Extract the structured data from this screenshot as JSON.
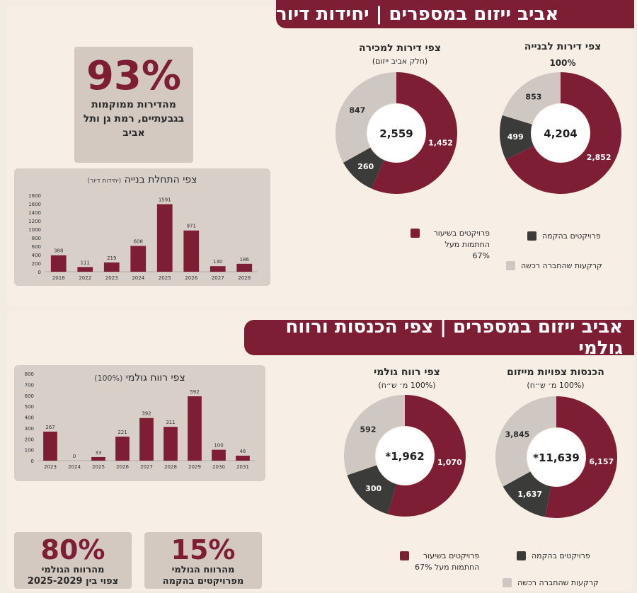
{
  "section1": {
    "banner": "אביב ייזום במספרים | יחידות דיור",
    "donut_right": {
      "title": "צפי דירות לבנייה",
      "subtitle": "100%",
      "center": "4,204"
    },
    "donut_left": {
      "title": "צפי דירות למכירה",
      "subtitle": "(חלק אביב ייזום)",
      "center": "2,559"
    },
    "stat": {
      "value": "93%",
      "text": "מהדירות ממוקמות בגבעתיים, רמת גן ותל אביב"
    },
    "legend": {
      "in_progress": {
        "line1": "פרויקטים בשיעור",
        "line2": "החתמות מעל 67%"
      },
      "building": "פרויקטים בהקמה",
      "land": "קרקעות שהחברה רכשה"
    }
  },
  "section2": {
    "banner": "אביב ייזום במספרים | צפי הכנסות ורווח גולמי",
    "donut_right": {
      "title": "הכנסות צפויות מייזום",
      "subtitle": "(100% מ׳ ש״ח)",
      "center": "*11,639"
    },
    "donut_left": {
      "title": "צפי רווח גולמי",
      "subtitle": "(100% מ׳ ש״ח)",
      "center": "*1,962"
    },
    "stat_left": {
      "value": "80%",
      "line1": "מהרווח הגולמי",
      "line2": "צפוי בין 2025-2029"
    },
    "stat_right": {
      "value": "15%",
      "line1": "מהרווח הגולמי",
      "line2": "מפרויקטים בהקמה"
    },
    "legend": {
      "in_progress": {
        "line1": "פרויקטים בשיעור",
        "line2": "החתמות מעל 67%"
      },
      "building": "פרויקטים בהקמה",
      "land": "קרקעות שהחברה רכשה"
    }
  },
  "colors": {
    "maroon": "#7d1e35",
    "dark": "#3b3b39",
    "grey": "#cfc7c2"
  },
  "chart_data": [
    {
      "type": "pie",
      "title": "צפי דירות לבנייה",
      "subtitle": "100%",
      "center_label": "4,204",
      "slices": [
        {
          "name": "פרויקטים בשיעור החתמות מעל 67%",
          "value": 2852,
          "label": "2,852",
          "color": "#7d1e35"
        },
        {
          "name": "פרויקטים בהקמה",
          "value": 499,
          "label": "499",
          "color": "#3b3b39"
        },
        {
          "name": "קרקעות שהחברה רכשה",
          "value": 853,
          "label": "853",
          "color": "#cfc7c2"
        }
      ]
    },
    {
      "type": "pie",
      "title": "צפי דירות למכירה",
      "subtitle": "(חלק אביב ייזום)",
      "center_label": "2,559",
      "slices": [
        {
          "name": "פרויקטים בשיעור החתמות מעל 67%",
          "value": 1452,
          "label": "1,452",
          "color": "#7d1e35"
        },
        {
          "name": "פרויקטים בהקמה",
          "value": 260,
          "label": "260",
          "color": "#3b3b39"
        },
        {
          "name": "קרקעות שהחברה רכשה",
          "value": 847,
          "label": "847",
          "color": "#cfc7c2"
        }
      ]
    },
    {
      "type": "bar",
      "title": "צפי התחלת בנייה",
      "subtitle": "(יחידות דיור)",
      "categories": [
        "2018",
        "2022",
        "2023",
        "2024",
        "2025",
        "2026",
        "2027",
        "2028"
      ],
      "values": [
        388,
        111,
        219,
        608,
        1591,
        971,
        130,
        186
      ],
      "yticks": [
        "0",
        "200",
        "400",
        "600",
        "800",
        "1000",
        "1200",
        "1400",
        "1600",
        "1800"
      ],
      "ylim": [
        0,
        1800
      ]
    },
    {
      "type": "pie",
      "title": "הכנסות צפויות מייזום",
      "subtitle": "(100% מ׳ ש״ח)",
      "center_label": "*11,639",
      "slices": [
        {
          "name": "פרויקטים בשיעור החתמות מעל 67%",
          "value": 6157,
          "label": "6,157",
          "color": "#7d1e35"
        },
        {
          "name": "פרויקטים בהקמה",
          "value": 1637,
          "label": "1,637",
          "color": "#3b3b39"
        },
        {
          "name": "קרקעות שהחברה רכשה",
          "value": 3845,
          "label": "3,845",
          "color": "#cfc7c2"
        }
      ]
    },
    {
      "type": "pie",
      "title": "צפי רווח גולמי",
      "subtitle": "(100% מ׳ ש״ח)",
      "center_label": "*1,962",
      "slices": [
        {
          "name": "פרויקטים בשיעור החתמות מעל 67%",
          "value": 1070,
          "label": "1,070",
          "color": "#7d1e35"
        },
        {
          "name": "פרויקטים בהקמה",
          "value": 300,
          "label": "300",
          "color": "#3b3b39"
        },
        {
          "name": "קרקעות שהחברה רכשה",
          "value": 592,
          "label": "592",
          "color": "#cfc7c2"
        }
      ]
    },
    {
      "type": "bar",
      "title": "צפי רווח גולמי",
      "subtitle": "(100%)",
      "categories": [
        "2023",
        "2024",
        "2025",
        "2026",
        "2027",
        "2028",
        "2029",
        "2030",
        "2031"
      ],
      "values": [
        267,
        0,
        33,
        221,
        392,
        311,
        592,
        100,
        46
      ],
      "yticks": [
        "0",
        "100",
        "200",
        "300",
        "400",
        "500",
        "600",
        "700",
        "800"
      ],
      "ylim": [
        0,
        800
      ]
    }
  ]
}
